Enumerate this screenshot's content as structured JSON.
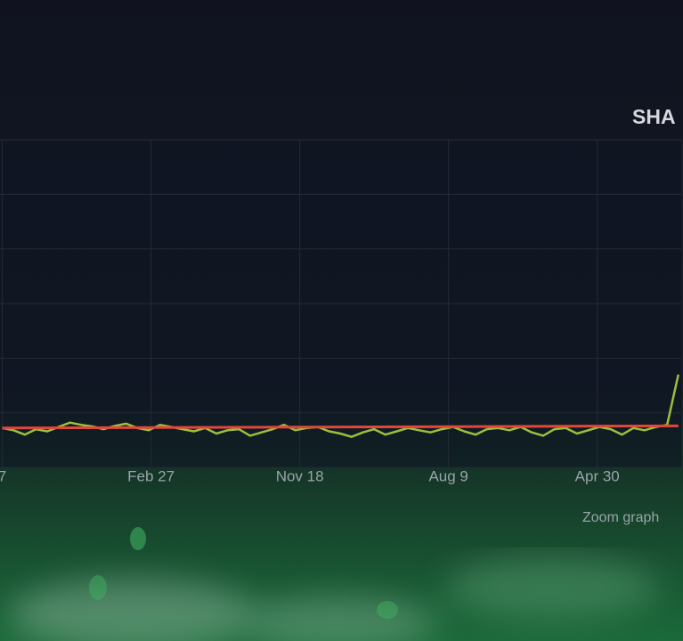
{
  "chart_data": {
    "type": "line",
    "title": "SHA",
    "zoom_label": "Zoom graph",
    "xlim": [
      -4,
      1205
    ],
    "ylim": [
      0,
      6
    ],
    "yticks": [
      1,
      2,
      3,
      4,
      5,
      6
    ],
    "grid": true,
    "xticks": [
      {
        "value": 0,
        "label": "7"
      },
      {
        "value": 264,
        "label": "Feb 27"
      },
      {
        "value": 528,
        "label": "Nov 18"
      },
      {
        "value": 792,
        "label": "Aug 9"
      },
      {
        "value": 1056,
        "label": "Apr 30"
      }
    ],
    "series": [
      {
        "color": "#9cbf3e",
        "x": [
          0,
          20,
          40,
          60,
          80,
          100,
          120,
          140,
          160,
          180,
          200,
          220,
          240,
          260,
          280,
          300,
          320,
          340,
          360,
          380,
          400,
          420,
          440,
          460,
          480,
          500,
          520,
          540,
          560,
          580,
          600,
          620,
          640,
          660,
          680,
          700,
          720,
          740,
          760,
          780,
          800,
          820,
          840,
          860,
          880,
          900,
          920,
          940,
          960,
          980,
          1000,
          1020,
          1040,
          1060,
          1080,
          1100,
          1120,
          1140,
          1160,
          1180,
          1200
        ],
        "values": [
          0.72,
          0.68,
          0.6,
          0.7,
          0.66,
          0.74,
          0.82,
          0.78,
          0.75,
          0.7,
          0.76,
          0.8,
          0.72,
          0.68,
          0.78,
          0.74,
          0.7,
          0.66,
          0.72,
          0.62,
          0.68,
          0.7,
          0.58,
          0.64,
          0.7,
          0.78,
          0.68,
          0.72,
          0.74,
          0.66,
          0.62,
          0.56,
          0.64,
          0.7,
          0.6,
          0.66,
          0.72,
          0.68,
          0.64,
          0.7,
          0.74,
          0.66,
          0.6,
          0.7,
          0.72,
          0.68,
          0.74,
          0.64,
          0.58,
          0.7,
          0.72,
          0.62,
          0.68,
          0.74,
          0.7,
          0.6,
          0.72,
          0.68,
          0.74,
          0.78,
          1.7
        ]
      },
      {
        "color": "#e2473a",
        "x": [
          0,
          1200
        ],
        "values": [
          0.72,
          0.76
        ]
      }
    ]
  }
}
